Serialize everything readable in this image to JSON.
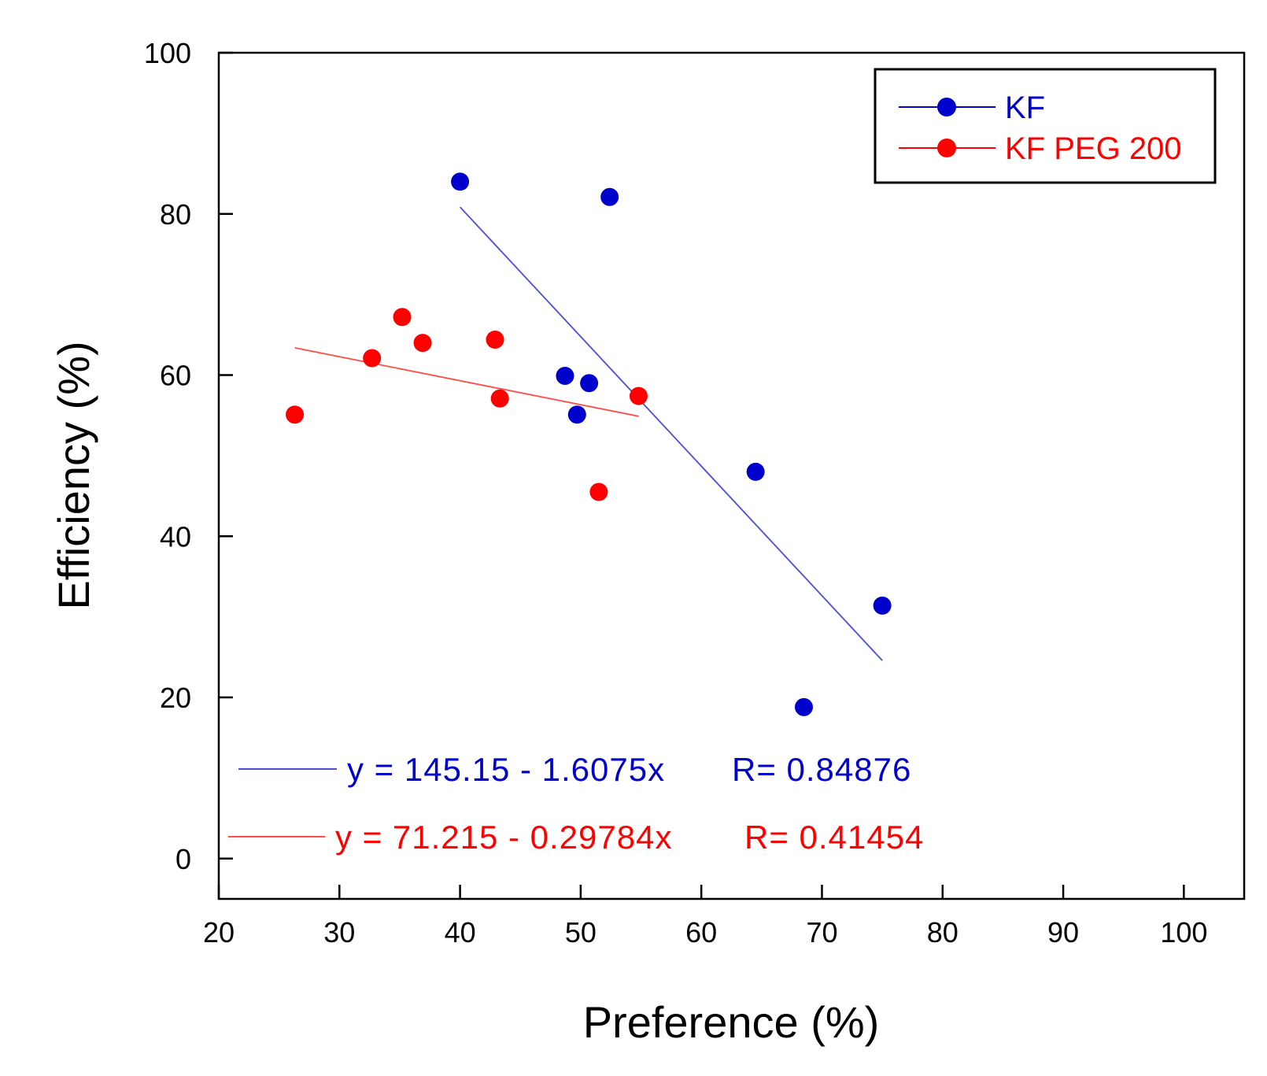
{
  "chart_data": {
    "type": "scatter",
    "title": "",
    "xlabel": "Preference (%)",
    "ylabel": "Efficiency (%)",
    "xlim": [
      20,
      105
    ],
    "ylim": [
      -5,
      100
    ],
    "xticks": [
      20,
      30,
      40,
      50,
      60,
      70,
      80,
      90,
      100
    ],
    "yticks": [
      0,
      20,
      40,
      60,
      80,
      100
    ],
    "grid": false,
    "legend_position": "top-right",
    "series": [
      {
        "name": "KF",
        "color": "#0000cc",
        "points": [
          {
            "x": 40.0,
            "y": 84.0
          },
          {
            "x": 52.4,
            "y": 82.1
          },
          {
            "x": 48.7,
            "y": 59.9
          },
          {
            "x": 50.7,
            "y": 59.0
          },
          {
            "x": 49.7,
            "y": 55.1
          },
          {
            "x": 64.5,
            "y": 48.0
          },
          {
            "x": 75.0,
            "y": 31.4
          },
          {
            "x": 68.5,
            "y": 18.8
          }
        ],
        "fit": {
          "x_range": [
            40.0,
            75.0
          ],
          "intercept": 145.15,
          "slope": -1.6075
        },
        "equation": "y = 145.15 - 1.6075x",
        "r_text": "R= 0.84876"
      },
      {
        "name": "KF PEG 200",
        "color": "#ff0000",
        "points": [
          {
            "x": 26.3,
            "y": 55.1
          },
          {
            "x": 32.7,
            "y": 62.1
          },
          {
            "x": 35.2,
            "y": 67.2
          },
          {
            "x": 36.9,
            "y": 64.0
          },
          {
            "x": 42.9,
            "y": 64.4
          },
          {
            "x": 43.3,
            "y": 57.1
          },
          {
            "x": 51.5,
            "y": 45.5
          },
          {
            "x": 54.8,
            "y": 57.4
          }
        ],
        "fit": {
          "x_range": [
            26.3,
            54.8
          ],
          "intercept": 71.215,
          "slope": -0.29784
        },
        "equation": "y = 71.215 - 0.29784x",
        "r_text": "R= 0.41454"
      }
    ]
  }
}
